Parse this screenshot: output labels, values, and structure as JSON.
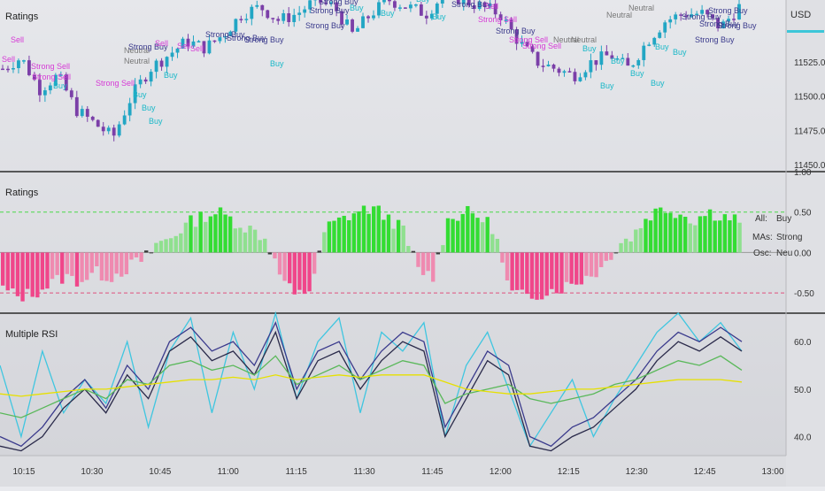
{
  "pane1": {
    "title": "Ratings",
    "currency": "USD",
    "y_ticks": [
      "11525.0",
      "11500.0",
      "11475.0",
      "11450.0"
    ]
  },
  "pane2": {
    "title": "Ratings",
    "y_ticks": [
      "1.00",
      "0.50",
      "0.00",
      "-0.50"
    ],
    "legend": [
      {
        "label": "All:",
        "value": "Buy",
        "color": "#7ed67e"
      },
      {
        "label": "MAs:",
        "value": "Strong",
        "color": "#2ecc2e"
      },
      {
        "label": "Osc:",
        "value": "Neu",
        "color": "#444444"
      }
    ]
  },
  "pane3": {
    "title": "Multiple RSI",
    "y_ticks": [
      "60.0",
      "50.0",
      "40.0"
    ]
  },
  "x_ticks": [
    "10:15",
    "10:30",
    "10:45",
    "11:00",
    "11:15",
    "11:30",
    "11:45",
    "12:00",
    "12:15",
    "12:30",
    "12:45",
    "13:00"
  ],
  "signal_labels": [
    "Strong Sell",
    "Sell",
    "Neutral",
    "Buy",
    "Strong Buy"
  ],
  "colors": {
    "bull_candle": "#22a6c4",
    "bear_candle": "#7b3fa8",
    "sell_text": "#d63ad6",
    "buy_text": "#19b8c8",
    "neutral_text": "#777777",
    "pos_bar": "#33dd33",
    "neg_bar": "#f0468a",
    "rsi_fast": "#3fc6e0",
    "rsi_mid": "#3a3a8c",
    "rsi_slow": "#2a2a4a",
    "rsi_green": "#5ab85a",
    "rsi_yellow": "#e6e000"
  },
  "chart_data": [
    {
      "type": "candlestick",
      "title": "Ratings",
      "ylim": [
        11445,
        11570
      ],
      "y_unit": "USD",
      "series": [
        {
          "name": "price",
          "values": [
            11520,
            11528,
            11505,
            11515,
            11490,
            11480,
            11470,
            11500,
            11520,
            11530,
            11540,
            11535,
            11545,
            11560,
            11565,
            11555,
            11560,
            11570,
            11565,
            11545,
            11560,
            11570,
            11565,
            11560,
            11575,
            11570,
            11565,
            11560,
            11540,
            11525,
            11520,
            11515,
            11525,
            11530,
            11520,
            11540,
            11555,
            11560,
            11560,
            11550,
            11565
          ]
        }
      ]
    },
    {
      "type": "bar",
      "title": "Ratings",
      "ylim": [
        -0.75,
        1.0
      ],
      "reference_lines": [
        0.5,
        0.0,
        -0.5
      ],
      "series": [
        {
          "name": "All",
          "values": [
            -0.45,
            -0.55,
            -0.5,
            -0.4,
            -0.3,
            -0.35,
            -0.25,
            -0.3,
            -0.2,
            -0.1,
            0.1,
            0.2,
            0.35,
            0.45,
            0.5,
            0.4,
            0.3,
            0.2,
            -0.25,
            -0.55,
            -0.45,
            0.3,
            0.4,
            0.5,
            0.55,
            0.45,
            0.3,
            -0.2,
            -0.3,
            0.4,
            0.5,
            0.45,
            0.3,
            -0.5,
            -0.55,
            -0.5,
            -0.45,
            -0.4,
            -0.3,
            -0.2,
            0.1,
            0.2,
            0.45,
            0.55,
            0.5,
            0.4,
            0.5,
            0.45,
            0.4
          ]
        }
      ]
    },
    {
      "type": "line",
      "title": "Multiple RSI",
      "ylim": [
        36,
        66
      ],
      "series": [
        {
          "values": [
            55,
            40,
            58,
            45,
            52,
            47,
            60,
            42,
            58,
            65,
            45,
            62,
            50,
            66,
            48,
            60,
            65,
            45,
            62,
            58,
            64,
            40,
            55,
            62,
            50,
            38,
            45,
            52,
            40,
            48,
            55,
            62,
            66,
            60,
            64,
            58
          ]
        },
        {
          "values": [
            40,
            38,
            42,
            48,
            52,
            46,
            55,
            50,
            60,
            63,
            58,
            60,
            55,
            64,
            50,
            58,
            60,
            52,
            58,
            62,
            60,
            42,
            50,
            58,
            55,
            40,
            38,
            42,
            44,
            48,
            52,
            58,
            62,
            60,
            63,
            60
          ]
        },
        {
          "values": [
            38,
            37,
            40,
            46,
            50,
            45,
            53,
            48,
            58,
            61,
            56,
            58,
            53,
            62,
            48,
            56,
            58,
            50,
            56,
            60,
            58,
            40,
            48,
            56,
            53,
            38,
            37,
            40,
            42,
            46,
            50,
            56,
            60,
            58,
            61,
            58
          ]
        },
        {
          "values": [
            45,
            44,
            46,
            48,
            50,
            48,
            52,
            51,
            55,
            56,
            54,
            55,
            53,
            57,
            51,
            53,
            55,
            52,
            54,
            56,
            55,
            47,
            49,
            50,
            51,
            48,
            47,
            48,
            49,
            51,
            52,
            54,
            56,
            55,
            57,
            54
          ]
        },
        {
          "values": [
            49,
            48.5,
            49,
            49.5,
            50,
            50,
            50.5,
            51,
            51.5,
            52,
            52,
            52.5,
            52,
            53,
            52,
            52.5,
            53,
            52.5,
            53,
            53,
            53,
            51.5,
            50,
            49.5,
            49,
            49,
            49.5,
            50,
            50,
            50.5,
            51,
            51.5,
            52,
            52,
            52,
            51.5
          ]
        }
      ]
    }
  ]
}
